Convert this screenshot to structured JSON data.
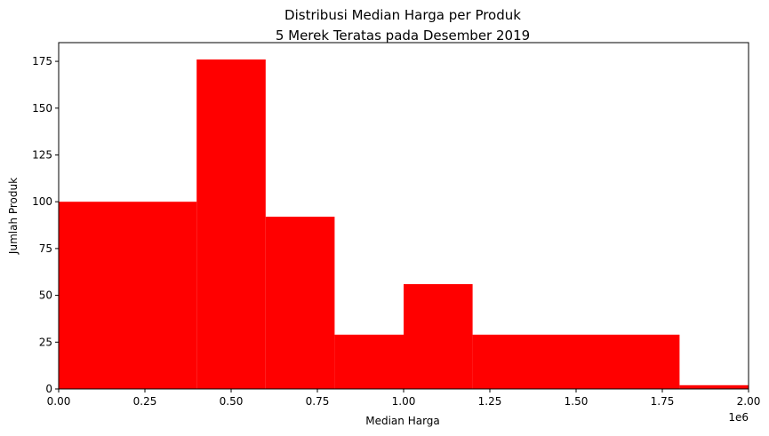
{
  "chart_data": {
    "type": "bar",
    "title": "Distribusi Median Harga per Produk",
    "subtitle": "5 Merek Teratas pada Desember 2019",
    "xlabel": "Median Harga",
    "ylabel": "Jumlah Produk",
    "x_offset_label": "1e6",
    "xlim": [
      0,
      2.0
    ],
    "ylim": [
      0,
      185
    ],
    "x_ticks": [
      0,
      0.25,
      0.5,
      0.75,
      1.0,
      1.25,
      1.5,
      1.75,
      2.0
    ],
    "x_tick_labels": [
      "0.00",
      "0.25",
      "0.50",
      "0.75",
      "1.00",
      "1.25",
      "1.50",
      "1.75",
      "2.00"
    ],
    "y_ticks": [
      0,
      25,
      50,
      75,
      100,
      125,
      150,
      175
    ],
    "y_tick_labels": [
      "0",
      "25",
      "50",
      "75",
      "100",
      "125",
      "150",
      "175"
    ],
    "bins": [
      {
        "start": 0.0,
        "end": 0.4,
        "value": 100
      },
      {
        "start": 0.4,
        "end": 0.6,
        "value": 176
      },
      {
        "start": 0.6,
        "end": 0.8,
        "value": 92
      },
      {
        "start": 0.8,
        "end": 1.0,
        "value": 29
      },
      {
        "start": 1.0,
        "end": 1.2,
        "value": 56
      },
      {
        "start": 1.2,
        "end": 1.8,
        "value": 29
      },
      {
        "start": 1.8,
        "end": 2.0,
        "value": 2
      }
    ],
    "bar_color": "#ff0000",
    "grid": false,
    "legend": "none"
  }
}
